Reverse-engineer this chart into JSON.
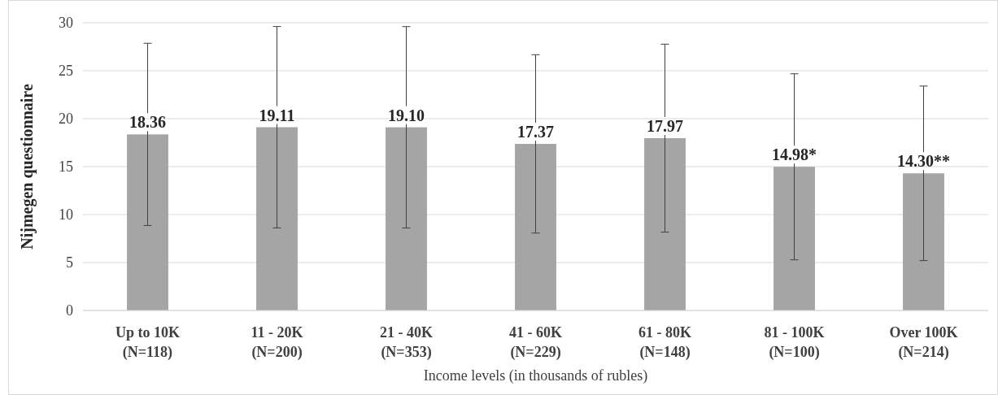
{
  "chart_data": {
    "type": "bar",
    "categories": [
      "Up to 10K\n(N=118)",
      "11 - 20K\n(N=200)",
      "21 - 40K\n(N=353)",
      "41 - 60K\n(N=229)",
      "61 - 80K\n(N=148)",
      "81 - 100K\n(N=100)",
      "Over 100K\n(N=214)"
    ],
    "values": [
      18.36,
      19.11,
      19.1,
      17.37,
      17.97,
      14.98,
      14.3
    ],
    "errors": [
      9.5,
      10.5,
      10.5,
      9.3,
      9.8,
      9.7,
      9.1
    ],
    "value_labels": [
      "18.36",
      "19.11",
      "19.10",
      "17.37",
      "17.97",
      "14.98*",
      "14.30**"
    ],
    "color": "#a5a5a5",
    "xlabel": "Income levels (in thousands of rubles)",
    "ylabel": "Nijmegen questionnaire",
    "ylim": [
      0,
      30
    ],
    "yticks": [
      0,
      5,
      10,
      15,
      20,
      25,
      30
    ],
    "grid": "y"
  }
}
